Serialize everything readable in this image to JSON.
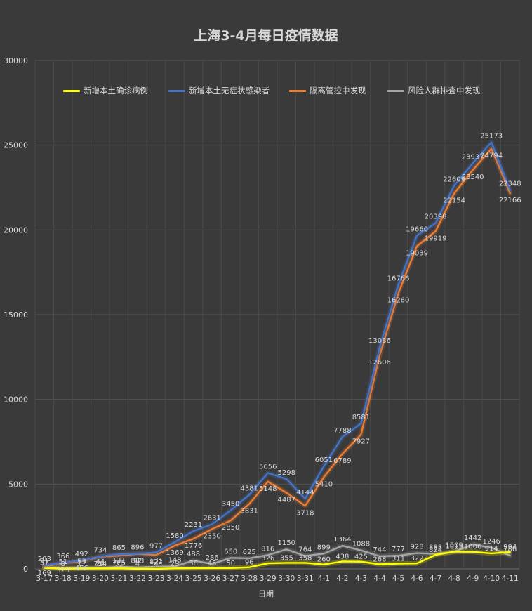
{
  "chart_data": {
    "type": "line",
    "title": "上海3-4月每日疫情数据",
    "xlabel": "日期",
    "ylabel": "",
    "ylim": [
      0,
      30000
    ],
    "yticks": [
      0,
      5000,
      10000,
      15000,
      20000,
      25000,
      30000
    ],
    "grid": true,
    "legend_position": "top",
    "categories": [
      "3-17",
      "3-18",
      "3-19",
      "3-20",
      "3-21",
      "3-22",
      "3-23",
      "3-24",
      "3-25",
      "3-26",
      "3-27",
      "3-28",
      "3-29",
      "3-30",
      "3-31",
      "4-1",
      "4-2",
      "4-3",
      "4-4",
      "4-5",
      "4-6",
      "4-7",
      "4-8",
      "4-9",
      "4-10",
      "4-11"
    ],
    "series": [
      {
        "name": "新增本土确诊病例",
        "color": "#ffff00",
        "values": [
          57,
          8,
          17,
          24,
          31,
          4,
          4,
          29,
          38,
          45,
          50,
          96,
          326,
          355,
          358,
          260,
          438,
          425,
          268,
          311,
          322,
          824,
          1015,
          1006,
          914,
          994
        ]
      },
      {
        "name": "新增本土无症状感染者",
        "color": "#4472c4",
        "values": [
          203,
          366,
          492,
          734,
          865,
          896,
          977,
          1580,
          2231,
          2631,
          3450,
          4381,
          5656,
          5298,
          4144,
          6051,
          7788,
          8581,
          13086,
          16766,
          19660,
          20398,
          22609,
          23937,
          25173,
          22348
        ]
      },
      {
        "name": "隔离管控中发现",
        "color": "#ed7d31",
        "values": [
          169,
          323,
          456,
          714,
          775,
          883,
          822,
          1369,
          1776,
          2350,
          2850,
          3831,
          5148,
          4487,
          3718,
          5410,
          6789,
          7927,
          12606,
          16260,
          19039,
          19919,
          22154,
          23540,
          24794,
          22166
        ]
      },
      {
        "name": "风险人群排查中发现",
        "color": "#a5a5a5",
        "values": [
          91,
          51,
          53,
          44,
          121,
          92,
          131,
          148,
          488,
          286,
          650,
          625,
          816,
          1150,
          764,
          899,
          1364,
          1088,
          744,
          777,
          928,
          888,
          1009,
          1442,
          1246,
          786
        ]
      }
    ],
    "value_labels_shown": true
  }
}
